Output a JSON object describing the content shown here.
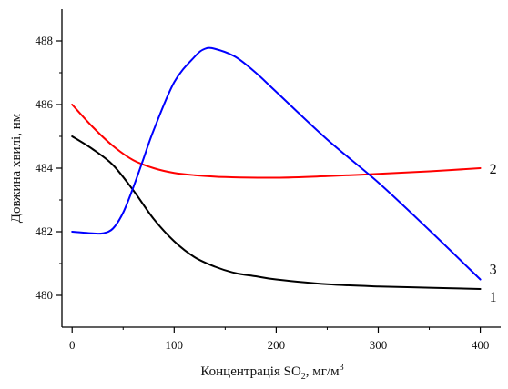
{
  "chart_data": {
    "type": "line",
    "title": "",
    "xlabel": {
      "main": "Концентрація SO",
      "sub": "2",
      "rest": ", мг/м",
      "sup": "3"
    },
    "ylabel": "Довжина хвилі, нм",
    "xlim": [
      -10,
      420
    ],
    "ylim": [
      479,
      489
    ],
    "xticks": [
      0,
      100,
      200,
      300,
      400
    ],
    "yticks": [
      480,
      482,
      484,
      486,
      488
    ],
    "grid": false,
    "legend": "none",
    "series": [
      {
        "name": "1",
        "color": "#000000",
        "x": [
          0,
          20,
          40,
          60,
          80,
          100,
          120,
          140,
          160,
          180,
          200,
          250,
          300,
          350,
          400
        ],
        "y": [
          485.0,
          484.6,
          484.1,
          483.3,
          482.4,
          481.7,
          481.2,
          480.9,
          480.7,
          480.6,
          480.5,
          480.35,
          480.28,
          480.24,
          480.2
        ]
      },
      {
        "name": "2",
        "color": "#ff0000",
        "x": [
          0,
          20,
          40,
          60,
          80,
          100,
          120,
          150,
          200,
          250,
          300,
          350,
          400
        ],
        "y": [
          486.0,
          485.3,
          484.7,
          484.25,
          484.0,
          483.85,
          483.78,
          483.72,
          483.7,
          483.75,
          483.82,
          483.9,
          484.0
        ]
      },
      {
        "name": "3",
        "color": "#0000ff",
        "x": [
          0,
          20,
          30,
          40,
          50,
          60,
          70,
          80,
          100,
          120,
          130,
          140,
          160,
          180,
          200,
          250,
          300,
          350,
          400
        ],
        "y": [
          482.0,
          481.95,
          481.95,
          482.1,
          482.6,
          483.4,
          484.3,
          485.2,
          486.7,
          487.5,
          487.75,
          487.75,
          487.5,
          487.0,
          486.4,
          484.9,
          483.55,
          482.05,
          480.5
        ]
      }
    ]
  }
}
